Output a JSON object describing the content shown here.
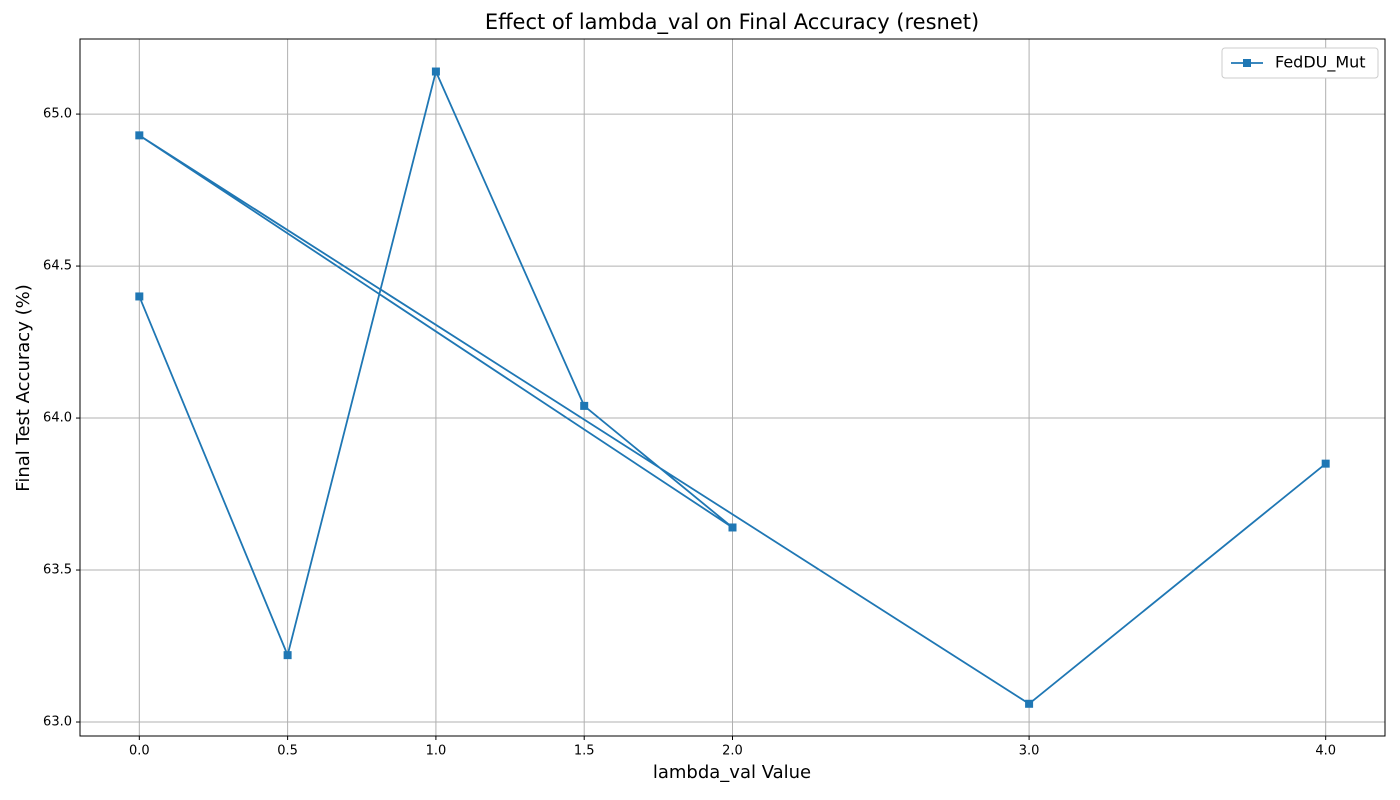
{
  "chart_data": {
    "type": "line",
    "title": "Effect of lambda_val on Final Accuracy (resnet)",
    "x_label": "lambda_val Value",
    "y_label": "Final Test Accuracy (%)",
    "x": [
      0,
      0.5,
      1.0,
      1.5,
      2.0,
      0,
      3.0,
      4.0
    ],
    "series": [
      {
        "name": "FedDU_Mut",
        "color": "#1f77b4",
        "values": [
          64.4,
          63.22,
          65.14,
          64.04,
          63.64,
          64.93,
          63.06,
          63.85
        ]
      }
    ],
    "xlim": [
      -0.2,
      4.2
    ],
    "xticks": [
      {
        "value": 0,
        "label": "0.0"
      },
      {
        "value": 0.5,
        "label": "0.5"
      },
      {
        "value": 1,
        "label": "1.0"
      },
      {
        "value": 1.5,
        "label": "1.5"
      },
      {
        "value": 2,
        "label": "2.0"
      },
      {
        "value": 3,
        "label": "3.0"
      },
      {
        "value": 4,
        "label": "4.0"
      }
    ],
    "ylim": [
      62.954,
      65.247
    ],
    "yticks": [
      {
        "value": 63,
        "label": "63.0"
      },
      {
        "value": 63.5,
        "label": "63.5"
      },
      {
        "value": 64,
        "label": "64.0"
      },
      {
        "value": 64.5,
        "label": "64.5"
      },
      {
        "value": 65,
        "label": "65.0"
      }
    ],
    "grid": true,
    "legend": "upper right",
    "marker": "square"
  }
}
